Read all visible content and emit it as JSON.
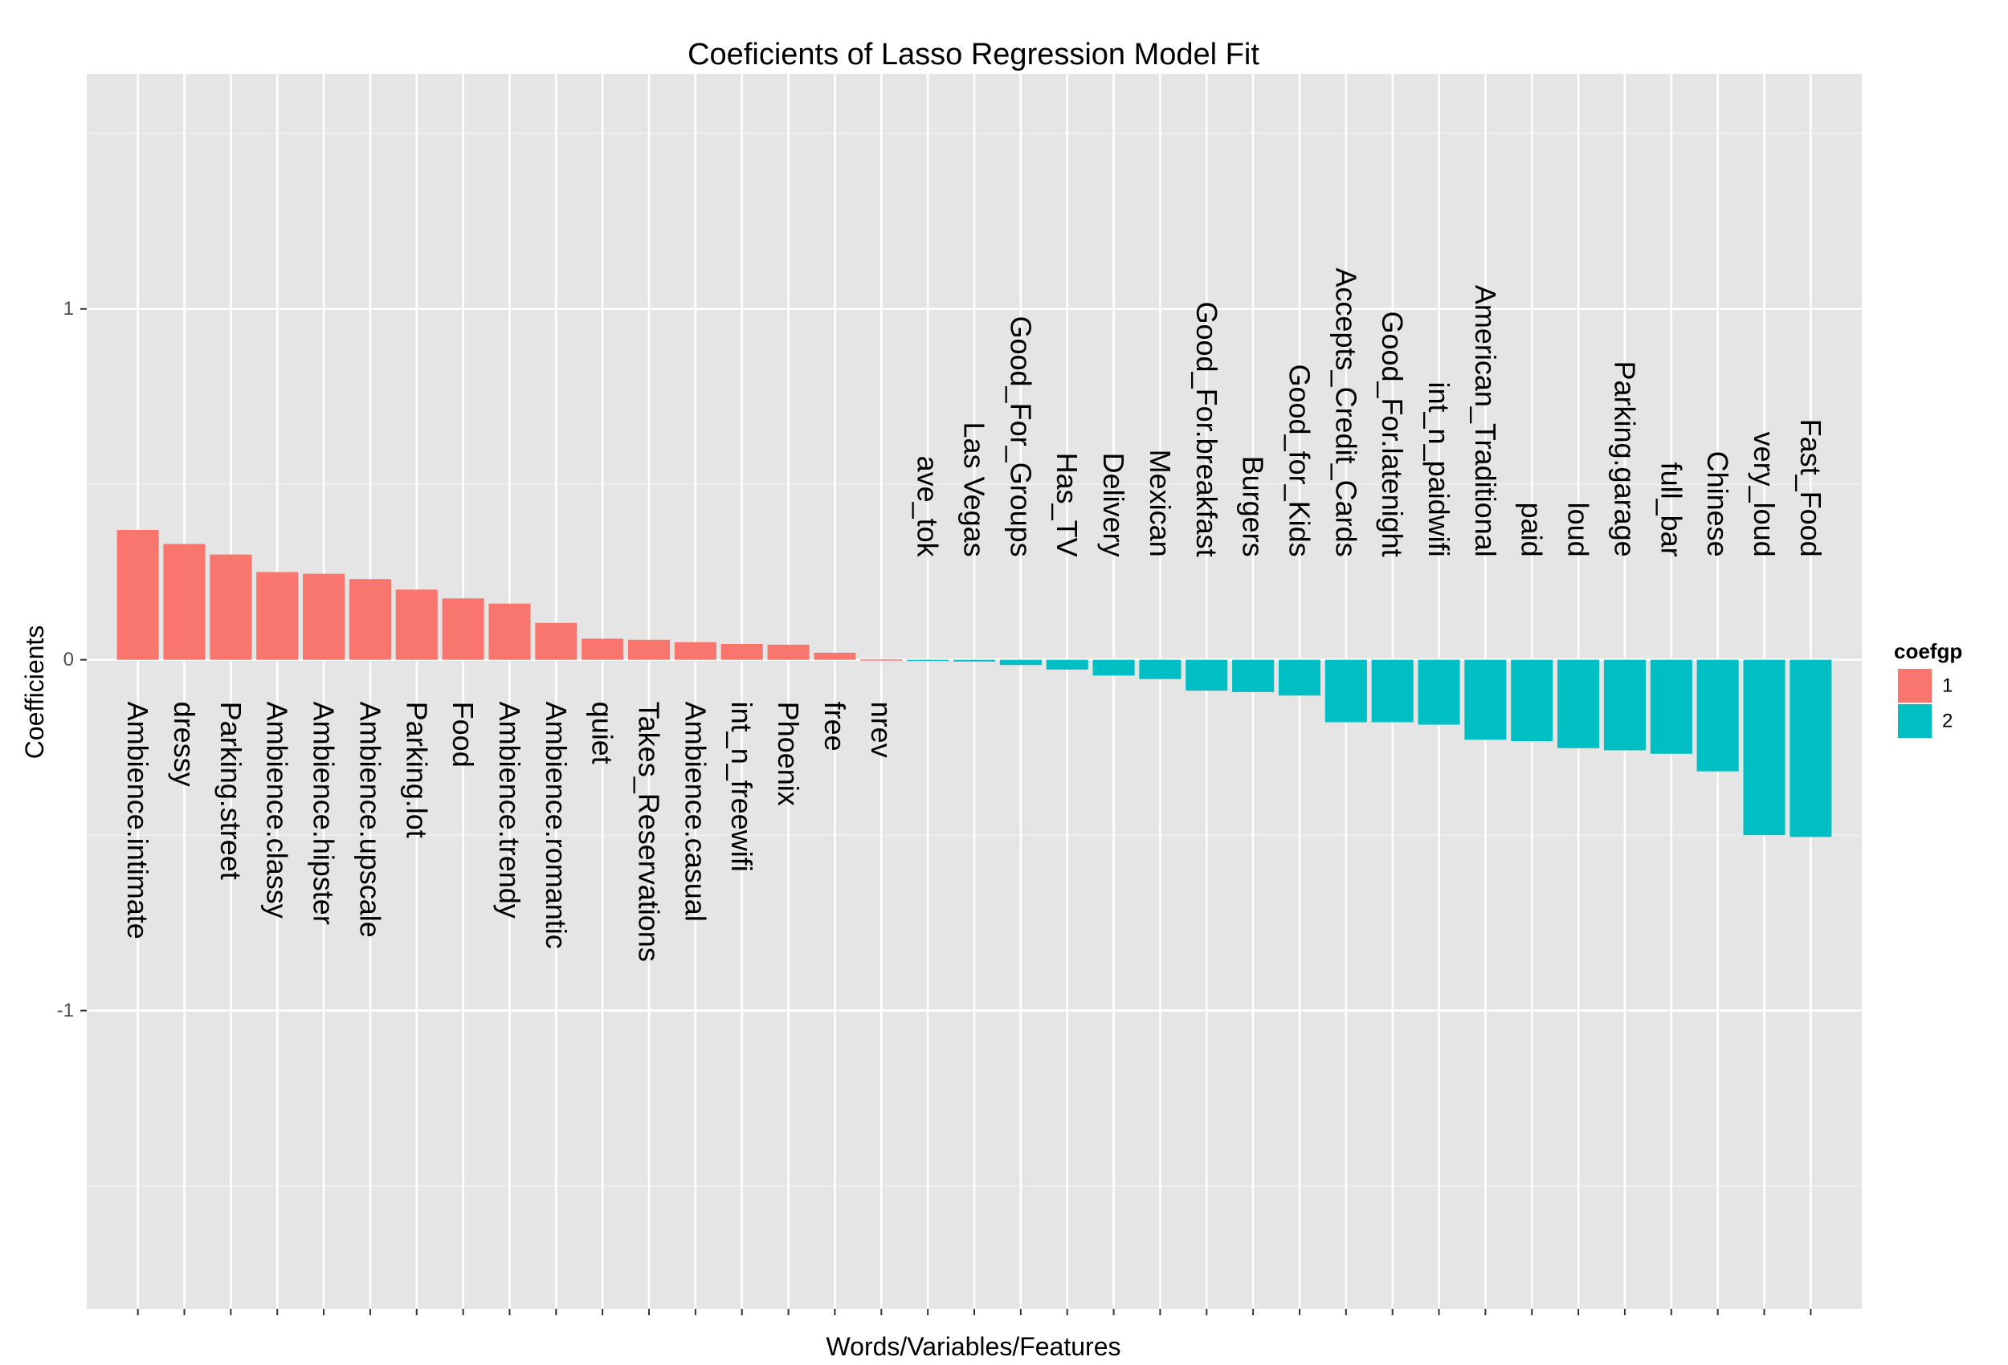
{
  "chart_data": {
    "type": "bar",
    "title": "Coeficients of Lasso Regression Model Fit",
    "xlabel": "Words/Variables/Features",
    "ylabel": "Coefficients",
    "ylim": [
      -1.85,
      1.67
    ],
    "yticks": [
      -1,
      0,
      1
    ],
    "ytick_labels": [
      "-1",
      "0",
      "1"
    ],
    "grid": true,
    "legend": {
      "title": "coefgp",
      "position": "right",
      "entries": [
        {
          "label": "1",
          "color": "#F8766D"
        },
        {
          "label": "2",
          "color": "#00BFC4"
        }
      ]
    },
    "categories": [
      "Ambience.intimate",
      "dressy",
      "Parking.street",
      "Ambience.classy",
      "Ambience.hipster",
      "Ambience.upscale",
      "Parking.lot",
      "Food",
      "Ambience.trendy",
      "Ambience.romantic",
      "quiet",
      "Takes_Reservations",
      "Ambience.casual",
      "int_n_freewifi",
      "Phoenix",
      "free",
      "nrev",
      "ave_tok",
      "Las Vegas",
      "Good_For_Groups",
      "Has_TV",
      "Delivery",
      "Mexican",
      "Good_For.breakfast",
      "Burgers",
      "Good_for_Kids",
      "Accepts_Credit_Cards",
      "Good_For.latenight",
      "int_n_paidwifi",
      "American_Traditional",
      "paid",
      "loud",
      "Parking.garage",
      "full_bar",
      "Chinese",
      "very_loud",
      "Fast_Food"
    ],
    "values": [
      0.37,
      0.33,
      0.3,
      0.25,
      0.245,
      0.23,
      0.2,
      0.175,
      0.16,
      0.105,
      0.06,
      0.057,
      0.05,
      0.045,
      0.043,
      0.02,
      0.001,
      -0.003,
      -0.005,
      -0.015,
      -0.028,
      -0.045,
      -0.055,
      -0.088,
      -0.092,
      -0.102,
      -0.178,
      -0.178,
      -0.185,
      -0.228,
      -0.232,
      -0.252,
      -0.258,
      -0.268,
      -0.318,
      -0.5,
      -0.505
    ],
    "groups": [
      "1",
      "1",
      "1",
      "1",
      "1",
      "1",
      "1",
      "1",
      "1",
      "1",
      "1",
      "1",
      "1",
      "1",
      "1",
      "1",
      "1",
      "2",
      "2",
      "2",
      "2",
      "2",
      "2",
      "2",
      "2",
      "2",
      "2",
      "2",
      "2",
      "2",
      "2",
      "2",
      "2",
      "2",
      "2",
      "2",
      "2"
    ]
  }
}
